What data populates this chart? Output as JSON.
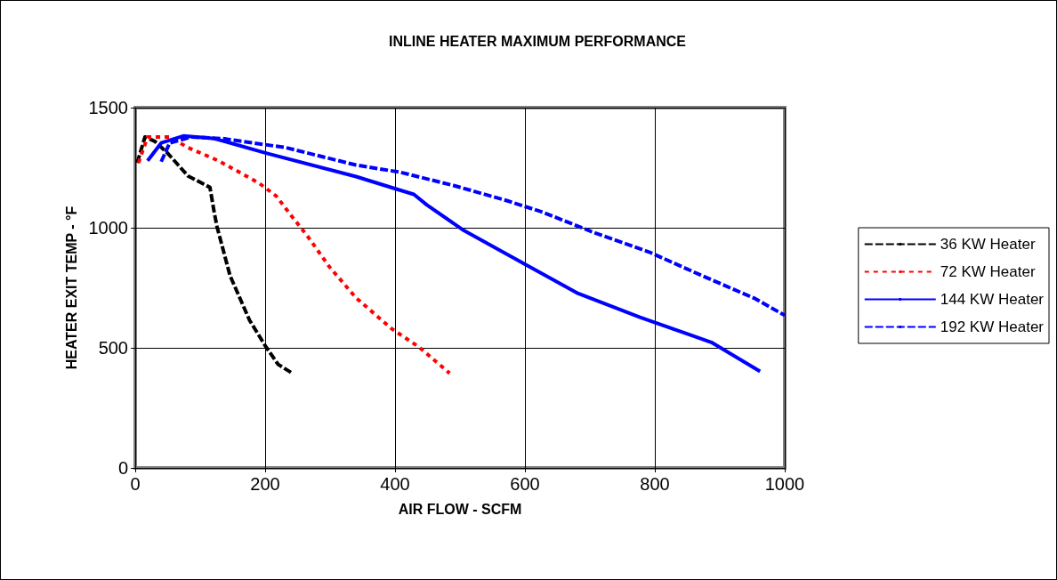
{
  "chart_data": {
    "type": "line",
    "title": "INLINE HEATER MAXIMUM PERFORMANCE",
    "xlabel": "AIR FLOW - SCFM",
    "ylabel": "HEATER EXIT TEMP - °F",
    "xlim": [
      0,
      1000
    ],
    "xticks": [
      0,
      200,
      400,
      600,
      800,
      1000
    ],
    "ylim": [
      0,
      1500
    ],
    "yticks": [
      0,
      500,
      1000,
      1500
    ],
    "grid": true,
    "legend": "right",
    "marker": "none",
    "series": [
      {
        "name": "36 KW Heater",
        "color": "#000000",
        "line_style": "dashed",
        "x": [
          3,
          15,
          30,
          50,
          81,
          115,
          122,
          126,
          146,
          176,
          201,
          220,
          242
        ],
        "values": [
          1270,
          1378,
          1360,
          1310,
          1216,
          1168,
          1058,
          1003,
          800,
          615,
          505,
          431,
          394
        ]
      },
      {
        "name": "72 KW Heater",
        "color": "#ff0000",
        "line_style": "dotted",
        "x": [
          5,
          19,
          53,
          81,
          128,
          190,
          217,
          238,
          265,
          299,
          340,
          395,
          436,
          484
        ],
        "values": [
          1270,
          1378,
          1378,
          1334,
          1279,
          1187,
          1132,
          1058,
          966,
          837,
          708,
          579,
          505,
          394
        ]
      },
      {
        "name": "144 KW Heater",
        "color": "#0000ff",
        "line_style": "solid",
        "x": [
          19,
          40,
          74,
          122,
          204,
          340,
          402,
          429,
          449,
          504,
          600,
          682,
          777,
          887,
          962
        ],
        "values": [
          1279,
          1353,
          1382,
          1371,
          1309,
          1213,
          1161,
          1139,
          1095,
          992,
          848,
          726,
          627,
          523,
          402
        ]
      },
      {
        "name": "192 KW Heater",
        "color": "#0000ff",
        "line_style": "dashed",
        "x": [
          40,
          53,
          87,
          135,
          231,
          340,
          408,
          490,
          572,
          627,
          709,
          791,
          873,
          955,
          1000
        ],
        "values": [
          1275,
          1353,
          1378,
          1371,
          1334,
          1261,
          1231,
          1176,
          1113,
          1065,
          977,
          899,
          800,
          704,
          635
        ]
      }
    ]
  }
}
